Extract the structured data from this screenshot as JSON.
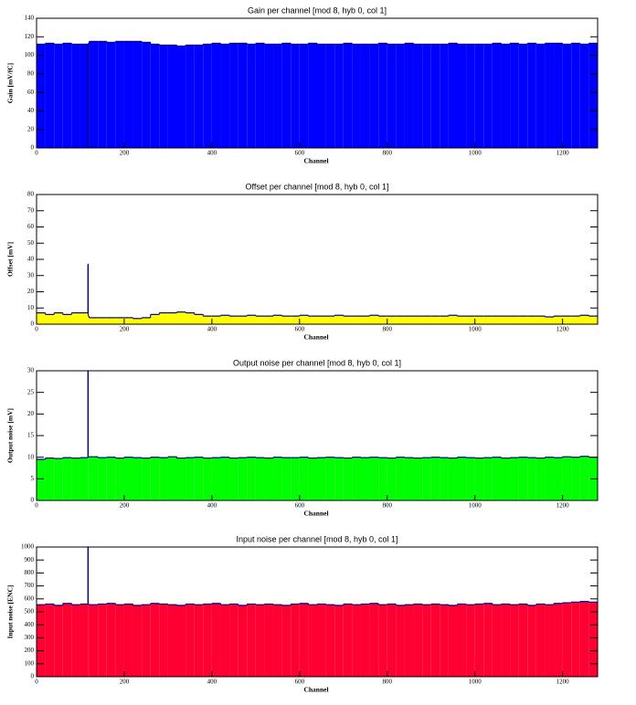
{
  "chart_data": [
    {
      "type": "histogram",
      "title": "Gain per channel [mod 8, hyb 0, col 1]",
      "x_label": "Channel",
      "y_label": "Gain [mV/fC]",
      "color": "#0000ff",
      "edge_color": "#000080",
      "bins": [
        0,
        20,
        40,
        60,
        80,
        100,
        117,
        118,
        120,
        140,
        160,
        180,
        200,
        220,
        240,
        260,
        280,
        300,
        320,
        340,
        360,
        380,
        400,
        420,
        440,
        460,
        480,
        500,
        520,
        540,
        560,
        580,
        600,
        620,
        640,
        660,
        680,
        700,
        720,
        740,
        760,
        780,
        800,
        820,
        840,
        860,
        880,
        900,
        920,
        940,
        960,
        980,
        1000,
        1020,
        1040,
        1060,
        1080,
        1100,
        1120,
        1140,
        1160,
        1180,
        1200,
        1220,
        1240,
        1260,
        1280
      ],
      "values": [
        112,
        113,
        112,
        113,
        112,
        112,
        0,
        113,
        115,
        115,
        114,
        115,
        115,
        115,
        114,
        112,
        111,
        111,
        110,
        111,
        111,
        112,
        113,
        112,
        113,
        113,
        112,
        113,
        112,
        112,
        113,
        112,
        112,
        113,
        112,
        112,
        112,
        113,
        112,
        112,
        112,
        113,
        112,
        112,
        113,
        112,
        112,
        112,
        112,
        113,
        112,
        112,
        112,
        112,
        113,
        112,
        113,
        112,
        113,
        112,
        113,
        113,
        112,
        113,
        112,
        113
      ],
      "xlim": [
        0,
        1280
      ],
      "xticks": [
        0,
        200,
        400,
        600,
        800,
        1000,
        1200
      ],
      "ylim": [
        0,
        140
      ],
      "yticks": [
        0,
        20,
        40,
        60,
        80,
        100,
        120,
        140
      ]
    },
    {
      "type": "histogram",
      "title": "Offset per channel [mod 8, hyb 0, col 1]",
      "x_label": "Channel",
      "y_label": "Offset [mV]",
      "color": "#ffff00",
      "edge_color": "#000080",
      "bins": [
        0,
        20,
        40,
        60,
        80,
        100,
        117,
        118,
        120,
        140,
        160,
        180,
        200,
        220,
        240,
        260,
        280,
        300,
        320,
        340,
        360,
        380,
        400,
        420,
        440,
        460,
        480,
        500,
        520,
        540,
        560,
        580,
        600,
        620,
        640,
        660,
        680,
        700,
        720,
        740,
        760,
        780,
        800,
        820,
        840,
        860,
        880,
        900,
        920,
        940,
        960,
        980,
        1000,
        1020,
        1040,
        1060,
        1080,
        1100,
        1120,
        1140,
        1160,
        1180,
        1200,
        1220,
        1240,
        1260,
        1280
      ],
      "values": [
        7,
        6,
        7,
        6,
        7,
        7,
        37,
        5,
        4,
        4,
        4,
        4,
        4,
        3.5,
        4,
        6,
        7,
        7,
        7.5,
        7,
        6,
        5,
        5,
        5.5,
        5,
        5,
        5.5,
        5,
        5,
        5.5,
        5,
        5,
        5.5,
        5,
        5,
        5,
        5.5,
        5,
        5,
        5,
        5.5,
        5,
        5,
        5,
        5,
        5,
        5,
        5,
        5,
        5.5,
        5,
        5,
        5,
        5,
        5,
        5,
        5,
        5,
        5,
        5,
        4.5,
        5,
        5,
        5,
        5.5,
        5
      ],
      "xlim": [
        0,
        1280
      ],
      "xticks": [
        0,
        200,
        400,
        600,
        800,
        1000,
        1200
      ],
      "ylim": [
        0,
        80
      ],
      "yticks": [
        0,
        10,
        20,
        30,
        40,
        50,
        60,
        70,
        80
      ]
    },
    {
      "type": "histogram",
      "title": "Output noise per channel [mod 8, hyb 0, col 1]",
      "x_label": "Channel",
      "y_label": "Output noise [mV]",
      "color": "#00ff00",
      "edge_color": "#000080",
      "bins": [
        0,
        20,
        40,
        60,
        80,
        100,
        117,
        118,
        120,
        140,
        160,
        180,
        200,
        220,
        240,
        260,
        280,
        300,
        320,
        340,
        360,
        380,
        400,
        420,
        440,
        460,
        480,
        500,
        520,
        540,
        560,
        580,
        600,
        620,
        640,
        660,
        680,
        700,
        720,
        740,
        760,
        780,
        800,
        820,
        840,
        860,
        880,
        900,
        920,
        940,
        960,
        980,
        1000,
        1020,
        1040,
        1060,
        1080,
        1100,
        1120,
        1140,
        1160,
        1180,
        1200,
        1220,
        1240,
        1260,
        1280
      ],
      "values": [
        9.5,
        9.8,
        9.7,
        9.9,
        9.8,
        9.9,
        30,
        10,
        10.1,
        9.9,
        10,
        9.8,
        10,
        9.9,
        9.8,
        10,
        9.9,
        10.1,
        9.8,
        9.9,
        10,
        9.8,
        9.9,
        10,
        9.8,
        9.9,
        10,
        9.9,
        9.8,
        10,
        9.9,
        9.9,
        10,
        9.8,
        9.9,
        10,
        9.9,
        9.8,
        10,
        9.9,
        10,
        9.9,
        9.8,
        10,
        9.9,
        9.8,
        9.9,
        10,
        9.9,
        9.8,
        10,
        9.9,
        9.8,
        9.9,
        10,
        9.8,
        9.9,
        10,
        9.9,
        9.8,
        10,
        9.9,
        10.1,
        10,
        10.2,
        10
      ],
      "xlim": [
        0,
        1280
      ],
      "xticks": [
        0,
        200,
        400,
        600,
        800,
        1000,
        1200
      ],
      "ylim": [
        0,
        30
      ],
      "yticks": [
        0,
        5,
        10,
        15,
        20,
        25,
        30
      ]
    },
    {
      "type": "histogram",
      "title": "Input noise per channel [mod 8, hyb 0, col 1]",
      "x_label": "Channel",
      "y_label": "Input noise [ENC]",
      "color": "#ff0033",
      "edge_color": "#000080",
      "bins": [
        0,
        20,
        40,
        60,
        80,
        100,
        117,
        118,
        120,
        140,
        160,
        180,
        200,
        220,
        240,
        260,
        280,
        300,
        320,
        340,
        360,
        380,
        400,
        420,
        440,
        460,
        480,
        500,
        520,
        540,
        560,
        580,
        600,
        620,
        640,
        660,
        680,
        700,
        720,
        740,
        760,
        780,
        800,
        820,
        840,
        860,
        880,
        900,
        920,
        940,
        960,
        980,
        1000,
        1020,
        1040,
        1060,
        1080,
        1100,
        1120,
        1140,
        1160,
        1180,
        1200,
        1220,
        1240,
        1260,
        1280
      ],
      "values": [
        555,
        560,
        550,
        565,
        555,
        560,
        1000,
        560,
        555,
        560,
        565,
        555,
        560,
        550,
        555,
        565,
        560,
        555,
        550,
        560,
        555,
        560,
        565,
        555,
        560,
        550,
        560,
        555,
        560,
        555,
        550,
        560,
        565,
        555,
        560,
        555,
        550,
        560,
        555,
        560,
        565,
        555,
        560,
        550,
        555,
        560,
        555,
        560,
        555,
        550,
        560,
        555,
        560,
        565,
        555,
        560,
        555,
        560,
        550,
        560,
        555,
        565,
        570,
        575,
        580,
        575
      ],
      "xlim": [
        0,
        1280
      ],
      "xticks": [
        0,
        200,
        400,
        600,
        800,
        1000,
        1200
      ],
      "ylim": [
        0,
        1000
      ],
      "yticks": [
        0,
        100,
        200,
        300,
        400,
        500,
        600,
        700,
        800,
        900,
        1000
      ]
    }
  ]
}
